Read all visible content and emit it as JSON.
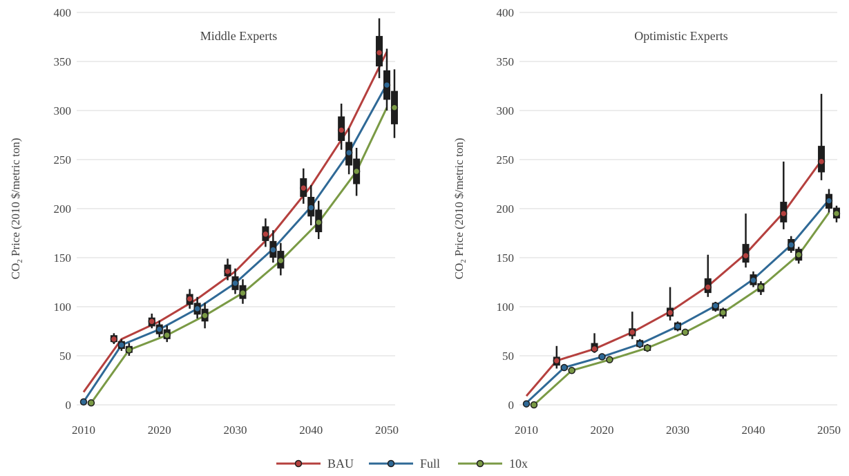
{
  "chart_data": [
    {
      "type": "line",
      "title": "Middle Experts",
      "ylabel": "CO",
      "ylabel_sub": "2",
      "ylabel_rest": " Price (2010 $/metric ton)",
      "xlim": [
        2010,
        2050
      ],
      "ylim": [
        0,
        400
      ],
      "xticks": [
        2010,
        2020,
        2030,
        2040,
        2050
      ],
      "yticks": [
        0,
        50,
        100,
        150,
        200,
        250,
        300,
        350,
        400
      ],
      "grid": "horizontal",
      "series": [
        {
          "name": "BAU",
          "color": "#b5403e",
          "line": [
            [
              2010,
              13
            ],
            [
              2015,
              67
            ],
            [
              2020,
              85
            ],
            [
              2025,
              108
            ],
            [
              2030,
              136
            ],
            [
              2035,
              175
            ],
            [
              2040,
              223
            ],
            [
              2045,
              282
            ],
            [
              2050,
              360
            ]
          ],
          "markers": [
            [
              2014,
              67
            ],
            [
              2019,
              85
            ],
            [
              2024,
              108
            ],
            [
              2029,
              136
            ],
            [
              2034,
              174
            ],
            [
              2039,
              221
            ],
            [
              2044,
              280
            ],
            [
              2049,
              359
            ]
          ],
          "boxes": [
            [
              2014,
              64,
              71,
              62,
              73
            ],
            [
              2019,
              80,
              89,
              78,
              93
            ],
            [
              2024,
              102,
              113,
              98,
              118
            ],
            [
              2029,
              131,
              143,
              127,
              149
            ],
            [
              2034,
              167,
              182,
              161,
              190
            ],
            [
              2039,
              212,
              231,
              205,
              241
            ],
            [
              2044,
              269,
              294,
              260,
              307
            ],
            [
              2049,
              345,
              376,
              333,
              394
            ]
          ]
        },
        {
          "name": "Full",
          "color": "#2f6996",
          "line": [
            [
              2010,
              3
            ],
            [
              2015,
              61
            ],
            [
              2020,
              77
            ],
            [
              2025,
              98
            ],
            [
              2030,
              124
            ],
            [
              2035,
              159
            ],
            [
              2040,
              202
            ],
            [
              2045,
              257
            ],
            [
              2050,
              327
            ]
          ],
          "markers": [
            [
              2010,
              3
            ],
            [
              2015,
              61
            ],
            [
              2020,
              77
            ],
            [
              2025,
              98
            ],
            [
              2030,
              124
            ],
            [
              2035,
              158
            ],
            [
              2040,
              201
            ],
            [
              2045,
              257
            ],
            [
              2050,
              326
            ]
          ],
          "boxes": [
            [
              2015,
              57,
              65,
              55,
              67
            ],
            [
              2020,
              72,
              82,
              69,
              86
            ],
            [
              2025,
              92,
              104,
              88,
              110
            ],
            [
              2030,
              117,
              131,
              113,
              139
            ],
            [
              2035,
              150,
              167,
              145,
              178
            ],
            [
              2040,
              192,
              212,
              183,
              224
            ],
            [
              2045,
              244,
              268,
              235,
              282
            ],
            [
              2050,
              311,
              341,
              300,
              363
            ]
          ]
        },
        {
          "name": "10x",
          "color": "#7a9a45",
          "line": [
            [
              2011,
              2
            ],
            [
              2016,
              56
            ],
            [
              2021,
              71
            ],
            [
              2026,
              91
            ],
            [
              2031,
              114
            ],
            [
              2036,
              147
            ],
            [
              2041,
              186
            ],
            [
              2046,
              238
            ],
            [
              2050,
              303
            ]
          ],
          "markers": [
            [
              2011,
              2
            ],
            [
              2016,
              56
            ],
            [
              2021,
              71
            ],
            [
              2026,
              91
            ],
            [
              2031,
              114
            ],
            [
              2036,
              147
            ],
            [
              2041,
              186
            ],
            [
              2046,
              238
            ],
            [
              2051,
              303
            ]
          ],
          "boxes": [
            [
              2016,
              53,
              60,
              50,
              63
            ],
            [
              2021,
              67,
              77,
              64,
              81
            ],
            [
              2026,
              85,
              98,
              78,
              104
            ],
            [
              2031,
              108,
              122,
              103,
              128
            ],
            [
              2036,
              139,
              157,
              132,
              165
            ],
            [
              2041,
              176,
              199,
              169,
              208
            ],
            [
              2046,
              225,
              251,
              213,
              262
            ],
            [
              2051,
              286,
              320,
              272,
              342
            ]
          ]
        }
      ]
    },
    {
      "type": "line",
      "title": "Optimistic Experts",
      "ylabel": "CO",
      "ylabel_sub": "2",
      "ylabel_rest": " Price (2010 $/metric ton)",
      "xlim": [
        2010,
        2050
      ],
      "ylim": [
        0,
        400
      ],
      "xticks": [
        2010,
        2020,
        2030,
        2040,
        2050
      ],
      "yticks": [
        0,
        50,
        100,
        150,
        200,
        250,
        300,
        350,
        400
      ],
      "grid": "horizontal",
      "series": [
        {
          "name": "BAU",
          "color": "#b5403e",
          "line": [
            [
              2010,
              9
            ],
            [
              2014,
              45
            ],
            [
              2019,
              57
            ],
            [
              2024,
              74
            ],
            [
              2029,
              95
            ],
            [
              2034,
              121
            ],
            [
              2039,
              154
            ],
            [
              2044,
              196
            ],
            [
              2049,
              249
            ]
          ],
          "markers": [
            [
              2014,
              45
            ],
            [
              2019,
              57
            ],
            [
              2024,
              74
            ],
            [
              2029,
              94
            ],
            [
              2034,
              120
            ],
            [
              2039,
              152
            ],
            [
              2044,
              195
            ],
            [
              2049,
              248
            ]
          ],
          "boxes": [
            [
              2014,
              40,
              49,
              37,
              60
            ],
            [
              2019,
              55,
              63,
              53,
              73
            ],
            [
              2024,
              70,
              78,
              67,
              95
            ],
            [
              2029,
              90,
              99,
              86,
              120
            ],
            [
              2034,
              114,
              129,
              110,
              153
            ],
            [
              2039,
              145,
              164,
              140,
              195
            ],
            [
              2044,
              186,
              207,
              179,
              248
            ],
            [
              2049,
              237,
              264,
              229,
              317
            ]
          ]
        },
        {
          "name": "Full",
          "color": "#2f6996",
          "line": [
            [
              2010,
              2
            ],
            [
              2015,
              38
            ],
            [
              2020,
              49
            ],
            [
              2025,
              62
            ],
            [
              2030,
              80
            ],
            [
              2035,
              101
            ],
            [
              2040,
              128
            ],
            [
              2045,
              163
            ],
            [
              2050,
              209
            ]
          ],
          "markers": [
            [
              2010,
              1
            ],
            [
              2015,
              38
            ],
            [
              2020,
              49
            ],
            [
              2025,
              62
            ],
            [
              2030,
              80
            ],
            [
              2035,
              101
            ],
            [
              2040,
              127
            ],
            [
              2045,
              163
            ],
            [
              2050,
              208
            ]
          ],
          "boxes": [
            [
              2015,
              36,
              40,
              35,
              41
            ],
            [
              2020,
              47,
              51,
              46,
              52
            ],
            [
              2025,
              59,
              66,
              58,
              67
            ],
            [
              2030,
              76,
              84,
              75,
              85
            ],
            [
              2035,
              96,
              104,
              95,
              105
            ],
            [
              2040,
              122,
              133,
              120,
              136
            ],
            [
              2045,
              157,
              169,
              155,
              172
            ],
            [
              2050,
              200,
              215,
              196,
              220
            ]
          ]
        },
        {
          "name": "10x",
          "color": "#7a9a45",
          "line": [
            [
              2011,
              0
            ],
            [
              2016,
              35
            ],
            [
              2021,
              46
            ],
            [
              2026,
              58
            ],
            [
              2031,
              74
            ],
            [
              2036,
              94
            ],
            [
              2041,
              120
            ],
            [
              2046,
              153
            ],
            [
              2050,
              196
            ]
          ],
          "markers": [
            [
              2011,
              0
            ],
            [
              2016,
              35
            ],
            [
              2021,
              46
            ],
            [
              2026,
              58
            ],
            [
              2031,
              74
            ],
            [
              2036,
              94
            ],
            [
              2041,
              120
            ],
            [
              2046,
              153
            ],
            [
              2051,
              195
            ]
          ],
          "boxes": [
            [
              2016,
              34,
              37,
              33,
              38
            ],
            [
              2021,
              45,
              48,
              44,
              49
            ],
            [
              2026,
              55,
              61,
              54,
              62
            ],
            [
              2031,
              72,
              76,
              71,
              77
            ],
            [
              2036,
              90,
              98,
              88,
              99
            ],
            [
              2041,
              115,
              124,
              112,
              126
            ],
            [
              2046,
              147,
              159,
              144,
              161
            ],
            [
              2051,
              190,
              201,
              186,
              203
            ]
          ]
        }
      ]
    }
  ],
  "legend": {
    "position": "bottom-center",
    "items": [
      {
        "label": "BAU",
        "color": "#b5403e"
      },
      {
        "label": "Full",
        "color": "#2f6996"
      },
      {
        "label": "10x",
        "color": "#7a9a45"
      }
    ]
  }
}
